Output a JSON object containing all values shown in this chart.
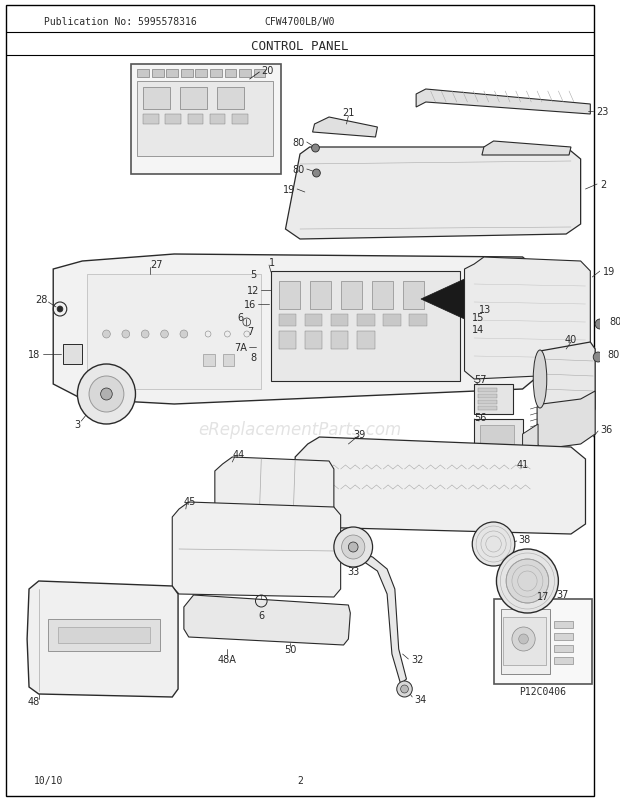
{
  "title": "CONTROL PANEL",
  "pub_no": "Publication No: 5995578316",
  "model": "CFW4700LB/W0",
  "date": "10/10",
  "page": "2",
  "watermark": "eReplacementParts.com",
  "inset_label": "P12C0406",
  "bg_color": "#ffffff",
  "border_color": "#000000",
  "dc": "#2a2a2a",
  "lc": "#888888",
  "fc_light": "#f0f0f0",
  "fc_mid": "#e0e0e0",
  "fc_dark": "#cccccc",
  "figsize": [
    6.2,
    8.03
  ],
  "dpi": 100
}
